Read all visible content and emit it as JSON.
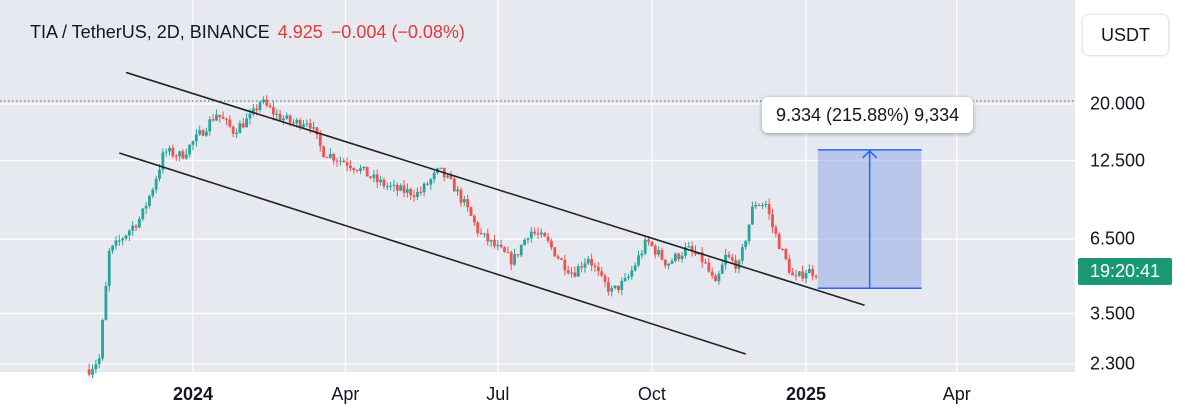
{
  "header": {
    "symbol": "TIA / TetherUS, 2D, BINANCE",
    "last_price": "4.925",
    "change": "−0.004 (−0.08%)"
  },
  "currency_button": {
    "label": "USDT"
  },
  "last_price_tag": {
    "countdown": "19:20:41"
  },
  "measure_tool": {
    "label": "9.334 (215.88%) 9,334",
    "from_price": 4.32,
    "to_price": 13.65
  },
  "colors": {
    "background_plot": "#e7e9f1",
    "up_candle": "#26a69a",
    "down_candle": "#ef5350",
    "trend_line": "#222222",
    "measure_fill": "#9fb5e8",
    "measure_line": "#2962ff",
    "last_price_tag": "#1a9972"
  },
  "chart_data": {
    "type": "candlestick",
    "title": "TIA / TetherUS, 2D, BINANCE",
    "y_scale": "log",
    "y_ticks": [
      {
        "value": 20,
        "label": "20.000"
      },
      {
        "value": 12.5,
        "label": "12.500"
      },
      {
        "value": 6.5,
        "label": "6.500"
      },
      {
        "value": 3.5,
        "label": "3.500"
      },
      {
        "value": 2.3,
        "label": "2.300"
      }
    ],
    "x_ticks": [
      {
        "date": "2024-01-01",
        "label": "2024",
        "bold": true
      },
      {
        "date": "2024-04-01",
        "label": "Apr",
        "bold": false
      },
      {
        "date": "2024-07-01",
        "label": "Jul",
        "bold": false
      },
      {
        "date": "2024-10-01",
        "label": "Oct",
        "bold": false
      },
      {
        "date": "2025-01-01",
        "label": "2025",
        "bold": true
      },
      {
        "date": "2025-04-01",
        "label": "Apr",
        "bold": false
      }
    ],
    "price_path": [
      [
        "2023-10-31",
        2.2
      ],
      [
        "2023-11-06",
        2.4
      ],
      [
        "2023-11-12",
        5.8
      ],
      [
        "2023-11-20",
        6.6
      ],
      [
        "2023-12-01",
        7.8
      ],
      [
        "2023-12-08",
        10.0
      ],
      [
        "2023-12-15",
        13.5
      ],
      [
        "2023-12-25",
        13.0
      ],
      [
        "2024-01-05",
        15.5
      ],
      [
        "2024-01-15",
        18.5
      ],
      [
        "2024-01-25",
        16.0
      ],
      [
        "2024-02-05",
        18.0
      ],
      [
        "2024-02-10",
        20.5
      ],
      [
        "2024-02-20",
        18.2
      ],
      [
        "2024-03-01",
        17.0
      ],
      [
        "2024-03-10",
        17.5
      ],
      [
        "2024-03-18",
        13.5
      ],
      [
        "2024-03-30",
        12.5
      ],
      [
        "2024-04-08",
        11.8
      ],
      [
        "2024-04-20",
        10.5
      ],
      [
        "2024-05-01",
        9.8
      ],
      [
        "2024-05-15",
        9.5
      ],
      [
        "2024-05-27",
        11.5
      ],
      [
        "2024-06-05",
        10.0
      ],
      [
        "2024-06-12",
        8.5
      ],
      [
        "2024-06-20",
        6.8
      ],
      [
        "2024-07-01",
        6.0
      ],
      [
        "2024-07-10",
        5.4
      ],
      [
        "2024-07-20",
        7.0
      ],
      [
        "2024-07-30",
        6.4
      ],
      [
        "2024-08-08",
        5.4
      ],
      [
        "2024-08-15",
        4.9
      ],
      [
        "2024-08-24",
        5.6
      ],
      [
        "2024-09-01",
        4.6
      ],
      [
        "2024-09-07",
        4.2
      ],
      [
        "2024-09-16",
        4.6
      ],
      [
        "2024-09-28",
        6.4
      ],
      [
        "2024-10-10",
        5.3
      ],
      [
        "2024-10-22",
        6.0
      ],
      [
        "2024-11-01",
        5.4
      ],
      [
        "2024-11-08",
        4.4
      ],
      [
        "2024-11-14",
        5.6
      ],
      [
        "2024-11-22",
        5.2
      ],
      [
        "2024-12-01",
        8.8
      ],
      [
        "2024-12-08",
        8.7
      ],
      [
        "2024-12-12",
        7.2
      ],
      [
        "2024-12-18",
        5.8
      ],
      [
        "2024-12-25",
        4.6
      ],
      [
        "2025-01-01",
        5.0
      ],
      [
        "2025-01-07",
        4.925
      ]
    ],
    "trend_lines": [
      {
        "from": [
          "2023-11-22",
          26.0
        ],
        "to": [
          "2025-02-05",
          3.75
        ]
      },
      {
        "from": [
          "2023-11-18",
          13.3
        ],
        "to": [
          "2024-11-26",
          2.5
        ]
      }
    ],
    "measure": {
      "from_date": "2025-01-08",
      "to_date": "2025-03-11",
      "from_price": 4.32,
      "to_price": 13.65
    },
    "reference_line": 20.5,
    "last_price": 4.925
  }
}
